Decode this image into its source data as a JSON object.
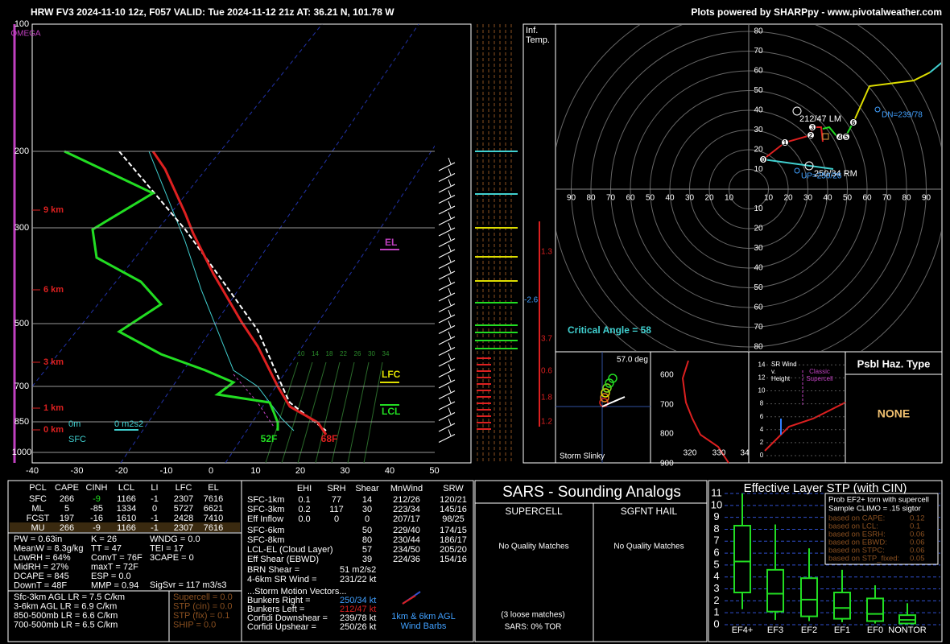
{
  "header": {
    "title": "HRW FV3 2024-11-10 12z, F057  VALID: Tue 2024-11-12 21z  AT: 36.21 N, 101.78 W",
    "credit": "Plots powered by SHARPpy - www.pivotalweather.com"
  },
  "skewt": {
    "omega": "OMEGA",
    "pressures": [
      "100",
      "200",
      "300",
      "500",
      "700",
      "850",
      "1000"
    ],
    "heights": [
      "9 km",
      "6 km",
      "3 km",
      "1 km",
      "0 km"
    ],
    "temps": [
      "-40",
      "-30",
      "-20",
      "-10",
      "0",
      "10",
      "20",
      "30",
      "40",
      "50"
    ],
    "mixing": [
      "10",
      "14",
      "18",
      "22",
      "26",
      "30",
      "34"
    ],
    "el": "EL",
    "lfc": "LFC",
    "lcl": "LCL",
    "dewpoint": "52F",
    "temperature": "68F",
    "sfc_height": "0m",
    "sfc_srh": "0 m2s2",
    "sfc": "SFC"
  },
  "inferred_temp": {
    "title_lines": [
      "Inf.",
      "Temp."
    ],
    "values": [
      "1.3",
      "-2.6",
      "3.7",
      "0.6",
      "1.8",
      "1.2"
    ]
  },
  "hodograph": {
    "rings": [
      "10",
      "20",
      "30",
      "40",
      "50",
      "60",
      "70",
      "80",
      "90"
    ],
    "markers": [
      "0",
      "1",
      "2",
      "3",
      "4",
      "5",
      "6"
    ],
    "lm": "212/47 LM",
    "rm": "250/34 RM",
    "dn": "DN=239/78",
    "up": "UP=250/26",
    "critical_angle": "Critical Angle = 58"
  },
  "slinky": {
    "angle": "57.0 deg",
    "label": "Storm Slinky"
  },
  "theta_panel": {
    "pressures": [
      "600",
      "700",
      "800",
      "900"
    ],
    "thetas": [
      "320",
      "330",
      "34"
    ]
  },
  "sr_wind": {
    "title_lines": [
      "SR Wind",
      "v.",
      "Height"
    ],
    "classic_lines": [
      "Classic",
      "Supercell"
    ],
    "ticks": [
      "0",
      "2",
      "4",
      "6",
      "8",
      "10",
      "12",
      "14"
    ]
  },
  "hazard": {
    "title": "Psbl Haz. Type",
    "value": "NONE"
  },
  "parcels": {
    "header": [
      "PCL",
      "CAPE",
      "CINH",
      "LCL",
      "LI",
      "LFC",
      "EL"
    ],
    "rows": [
      [
        "SFC",
        "266",
        "-9",
        "1166",
        "-1",
        "2307",
        "7616"
      ],
      [
        "ML",
        "5",
        "-85",
        "1334",
        "0",
        "5727",
        "6621"
      ],
      [
        "FCST",
        "197",
        "-16",
        "1610",
        "-1",
        "2428",
        "7410"
      ],
      [
        "MU",
        "266",
        "-9",
        "1166",
        "-1",
        "2307",
        "7616"
      ]
    ]
  },
  "indices": {
    "col1": [
      "PW = 0.63in",
      "MeanW = 8.3g/kg",
      "LowRH = 64%",
      "MidRH = 27%",
      "DCAPE = 845",
      "DownT = 48F"
    ],
    "col2": [
      "K = 26",
      "TT = 47",
      "ConvT = 76F",
      "maxT = 72F",
      "ESP = 0.0",
      "MMP = 0.94"
    ],
    "col3": [
      "WNDG = 0.0",
      "TEI = 17",
      "3CAPE = 0"
    ],
    "sigsvr": "SigSvr = 117 m3/s3"
  },
  "lapse_rates": [
    "Sfc-3km AGL LR = 7.5 C/km",
    "3-6km AGL LR = 6.9 C/km",
    "850-500mb LR = 6.6 C/km",
    "700-500mb LR = 6.5 C/km"
  ],
  "stp_block": [
    "Supercell = 0.0",
    "STP (cin) = 0.0",
    "STP (fix) = 0.1",
    "SHIP = 0.0"
  ],
  "kinematics": {
    "header": [
      "EHI",
      "SRH",
      "Shear",
      "MnWind",
      "SRW"
    ],
    "rows": [
      [
        "SFC-1km",
        "0.1",
        "77",
        "14",
        "212/26",
        "120/21"
      ],
      [
        "SFC-3km",
        "0.2",
        "117",
        "30",
        "223/34",
        "145/16"
      ],
      [
        "Eff Inflow",
        "0.0",
        "0",
        "0",
        "207/17",
        "98/25"
      ]
    ],
    "rows2": [
      [
        "SFC-6km",
        "50",
        "229/40",
        "174/15"
      ],
      [
        "SFC-8km",
        "80",
        "230/44",
        "186/17"
      ],
      [
        "LCL-EL (Cloud Layer)",
        "57",
        "234/50",
        "205/20"
      ],
      [
        "Eff Shear (EBWD)",
        "39",
        "224/36",
        "154/16"
      ]
    ],
    "misc": [
      [
        "BRN Shear =",
        "51 m2/s2"
      ],
      [
        "4-6km SR Wind =",
        "231/22 kt"
      ]
    ],
    "motion_title": "...Storm Motion Vectors...",
    "motions": [
      [
        "Bunkers Right =",
        "250/34 kt"
      ],
      [
        "Bunkers Left =",
        "212/47 kt"
      ],
      [
        "Corfidi Downshear =",
        "239/78 kt"
      ],
      [
        "Corfidi Upshear =",
        "250/26 kt"
      ]
    ],
    "barbs_label": [
      "1km & 6km AGL",
      "Wind Barbs"
    ]
  },
  "sars": {
    "title": "SARS - Sounding Analogs",
    "supercell": "SUPERCELL",
    "hail": "SGFNT HAIL",
    "no_match": "No Quality Matches",
    "loose": "(3 loose matches)",
    "tor": "SARS: 0% TOR"
  },
  "stp_chart": {
    "title": "Effective Layer STP (with CIN)",
    "categories": [
      "EF4+",
      "EF3",
      "EF2",
      "EF1",
      "EF0",
      "NONTOR"
    ],
    "ylim": [
      0,
      11
    ],
    "yticks": [
      0,
      1,
      2,
      3,
      4,
      5,
      6,
      7,
      8,
      9,
      10,
      11
    ],
    "boxes": [
      [
        1.3,
        2.7,
        5.3,
        8.3,
        11
      ],
      [
        0.4,
        1.1,
        2.6,
        4.6,
        8.4
      ],
      [
        0.3,
        0.7,
        2.1,
        3.9,
        6.4
      ],
      [
        0.2,
        0.5,
        1.4,
        2.7,
        4.6
      ],
      [
        0.1,
        0.3,
        0.9,
        2.2,
        3.3
      ],
      [
        0.05,
        0.1,
        0.4,
        0.8,
        1.8
      ]
    ],
    "legend_title": [
      "Prob EF2+ torn with supercell",
      "Sample CLIMO = .15 sigtor"
    ],
    "legend_rows": [
      [
        "based on CAPE:",
        "0.12"
      ],
      [
        "based on LCL:",
        "0.1"
      ],
      [
        "based on ESRH:",
        "0.06"
      ],
      [
        "based on EBWD:",
        "0.06"
      ],
      [
        "based on STPC:",
        "0.06"
      ],
      [
        "based on STP_fixed:",
        "0.05"
      ]
    ]
  }
}
